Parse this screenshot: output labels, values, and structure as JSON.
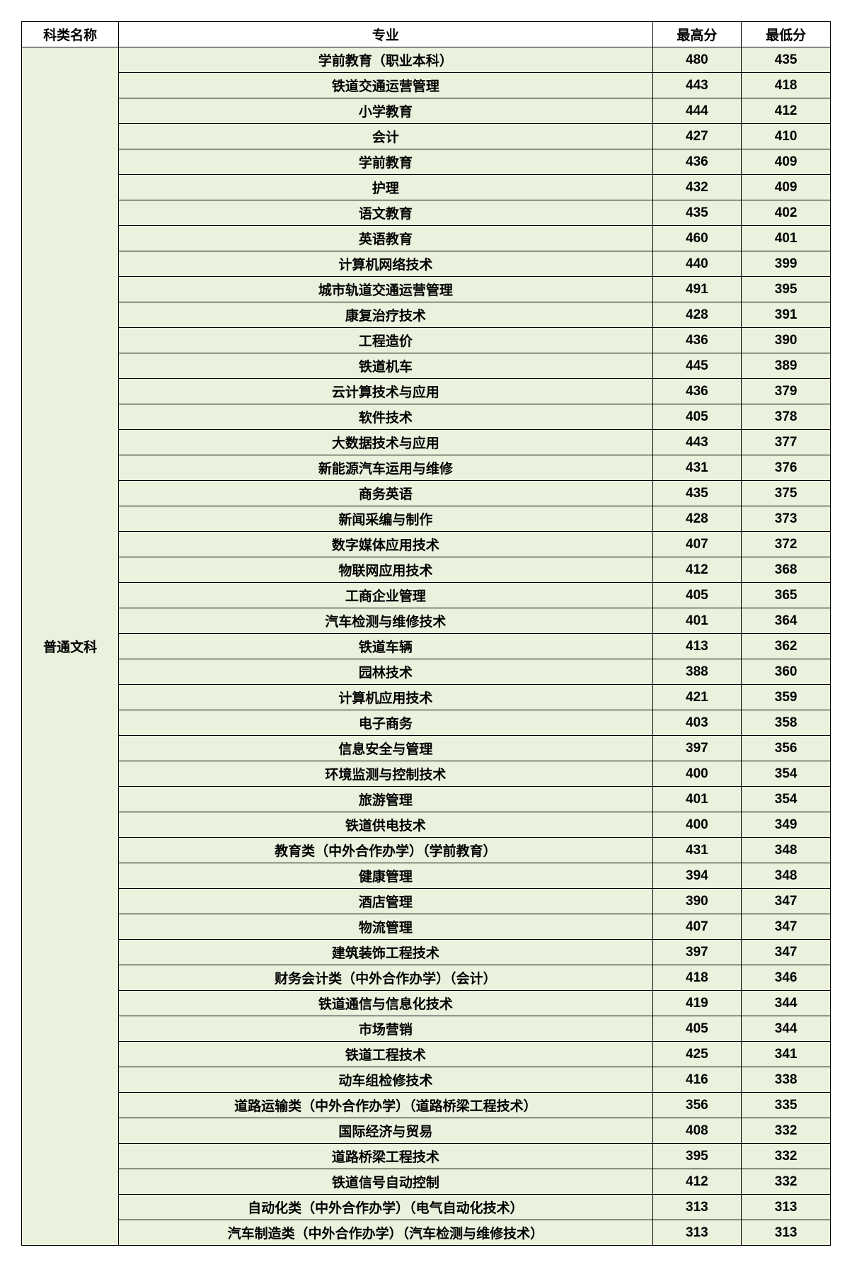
{
  "table": {
    "background_color": "#eaf1dd",
    "header_background_color": "#ffffff",
    "border_color": "#000000",
    "text_color": "#000000",
    "font_size": 19,
    "font_weight": "bold",
    "columns": [
      {
        "key": "category",
        "label": "科类名称",
        "width": "12%"
      },
      {
        "key": "major",
        "label": "专业",
        "width": "66%"
      },
      {
        "key": "high",
        "label": "最高分",
        "width": "11%"
      },
      {
        "key": "low",
        "label": "最低分",
        "width": "11%"
      }
    ],
    "category": "普通文科",
    "rows": [
      {
        "major": "学前教育（职业本科）",
        "high": "480",
        "low": "435"
      },
      {
        "major": "铁道交通运营管理",
        "high": "443",
        "low": "418"
      },
      {
        "major": "小学教育",
        "high": "444",
        "low": "412"
      },
      {
        "major": "会计",
        "high": "427",
        "low": "410"
      },
      {
        "major": "学前教育",
        "high": "436",
        "low": "409"
      },
      {
        "major": "护理",
        "high": "432",
        "low": "409"
      },
      {
        "major": "语文教育",
        "high": "435",
        "low": "402"
      },
      {
        "major": "英语教育",
        "high": "460",
        "low": "401"
      },
      {
        "major": "计算机网络技术",
        "high": "440",
        "low": "399"
      },
      {
        "major": "城市轨道交通运营管理",
        "high": "491",
        "low": "395"
      },
      {
        "major": "康复治疗技术",
        "high": "428",
        "low": "391"
      },
      {
        "major": "工程造价",
        "high": "436",
        "low": "390"
      },
      {
        "major": "铁道机车",
        "high": "445",
        "low": "389"
      },
      {
        "major": "云计算技术与应用",
        "high": "436",
        "low": "379"
      },
      {
        "major": "软件技术",
        "high": "405",
        "low": "378"
      },
      {
        "major": "大数据技术与应用",
        "high": "443",
        "low": "377"
      },
      {
        "major": "新能源汽车运用与维修",
        "high": "431",
        "low": "376"
      },
      {
        "major": "商务英语",
        "high": "435",
        "low": "375"
      },
      {
        "major": "新闻采编与制作",
        "high": "428",
        "low": "373"
      },
      {
        "major": "数字媒体应用技术",
        "high": "407",
        "low": "372"
      },
      {
        "major": "物联网应用技术",
        "high": "412",
        "low": "368"
      },
      {
        "major": "工商企业管理",
        "high": "405",
        "low": "365"
      },
      {
        "major": "汽车检测与维修技术",
        "high": "401",
        "low": "364"
      },
      {
        "major": "铁道车辆",
        "high": "413",
        "low": "362"
      },
      {
        "major": "园林技术",
        "high": "388",
        "low": "360"
      },
      {
        "major": "计算机应用技术",
        "high": "421",
        "low": "359"
      },
      {
        "major": "电子商务",
        "high": "403",
        "low": "358"
      },
      {
        "major": "信息安全与管理",
        "high": "397",
        "low": "356"
      },
      {
        "major": "环境监测与控制技术",
        "high": "400",
        "low": "354"
      },
      {
        "major": "旅游管理",
        "high": "401",
        "low": "354"
      },
      {
        "major": "铁道供电技术",
        "high": "400",
        "low": "349"
      },
      {
        "major": "教育类（中外合作办学）（学前教育）",
        "high": "431",
        "low": "348"
      },
      {
        "major": "健康管理",
        "high": "394",
        "low": "348"
      },
      {
        "major": "酒店管理",
        "high": "390",
        "low": "347"
      },
      {
        "major": "物流管理",
        "high": "407",
        "low": "347"
      },
      {
        "major": "建筑装饰工程技术",
        "high": "397",
        "low": "347"
      },
      {
        "major": "财务会计类（中外合作办学）（会计）",
        "high": "418",
        "low": "346"
      },
      {
        "major": "铁道通信与信息化技术",
        "high": "419",
        "low": "344"
      },
      {
        "major": "市场营销",
        "high": "405",
        "low": "344"
      },
      {
        "major": "铁道工程技术",
        "high": "425",
        "low": "341"
      },
      {
        "major": "动车组检修技术",
        "high": "416",
        "low": "338"
      },
      {
        "major": "道路运输类（中外合作办学）（道路桥梁工程技术）",
        "high": "356",
        "low": "335"
      },
      {
        "major": "国际经济与贸易",
        "high": "408",
        "low": "332"
      },
      {
        "major": "道路桥梁工程技术",
        "high": "395",
        "low": "332"
      },
      {
        "major": "铁道信号自动控制",
        "high": "412",
        "low": "332"
      },
      {
        "major": "自动化类（中外合作办学）（电气自动化技术）",
        "high": "313",
        "low": "313"
      },
      {
        "major": "汽车制造类（中外合作办学）（汽车检测与维修技术）",
        "high": "313",
        "low": "313"
      }
    ]
  }
}
